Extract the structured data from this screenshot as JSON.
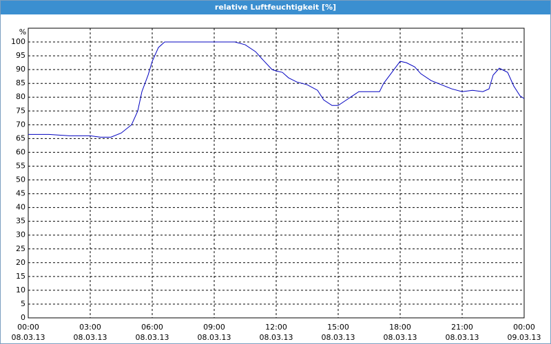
{
  "chart_data": {
    "type": "line",
    "title": "relative Luftfeuchtigkeit [%]",
    "y_unit": "%",
    "x": [
      0,
      1,
      2,
      3,
      3.5,
      4,
      4.5,
      5,
      5.3,
      5.5,
      5.8,
      6,
      6.3,
      6.6,
      7,
      8,
      9,
      10,
      10.5,
      11,
      11.3,
      11.8,
      12,
      12.3,
      12.6,
      13,
      13.5,
      14,
      14.3,
      14.7,
      15,
      15.5,
      16,
      16.5,
      17,
      17.2,
      17.5,
      18,
      18.3,
      18.7,
      19,
      19.5,
      20,
      20.5,
      21,
      21.5,
      22,
      22.3,
      22.5,
      22.8,
      23.2,
      23.5,
      23.8,
      24
    ],
    "series": [
      {
        "color": "#0000c0",
        "values": [
          66.5,
          66.5,
          66,
          66,
          65.5,
          65.5,
          67,
          70,
          75,
          82,
          88,
          93,
          98,
          100,
          100,
          100,
          100,
          100,
          99,
          96.5,
          94,
          90,
          89.5,
          89,
          87,
          85.5,
          84.5,
          82.5,
          79,
          77,
          77,
          79.5,
          82,
          82,
          82,
          85,
          88,
          93,
          92.5,
          91,
          88.5,
          86,
          84.5,
          83,
          82,
          82.5,
          82,
          83,
          88,
          90.5,
          89,
          84,
          80.5,
          79.5
        ]
      }
    ],
    "xlim": [
      0,
      24
    ],
    "xticks": [
      {
        "value": 0,
        "label": "00:00"
      },
      {
        "value": 3,
        "label": "03:00"
      },
      {
        "value": 6,
        "label": "06:00"
      },
      {
        "value": 9,
        "label": "09:00"
      },
      {
        "value": 12,
        "label": "12:00"
      },
      {
        "value": 15,
        "label": "15:00"
      },
      {
        "value": 18,
        "label": "18:00"
      },
      {
        "value": 21,
        "label": "21:00"
      },
      {
        "value": 24,
        "label": "00:00"
      }
    ],
    "xtick_dates": [
      "08.03.13",
      "08.03.13",
      "08.03.13",
      "08.03.13",
      "08.03.13",
      "08.03.13",
      "08.03.13",
      "08.03.13",
      "09.03.13"
    ],
    "ylim": [
      0,
      105
    ],
    "yticks": [
      0,
      5,
      10,
      15,
      20,
      25,
      30,
      35,
      40,
      45,
      50,
      55,
      60,
      65,
      70,
      75,
      80,
      85,
      90,
      95,
      100
    ],
    "grid": true
  }
}
